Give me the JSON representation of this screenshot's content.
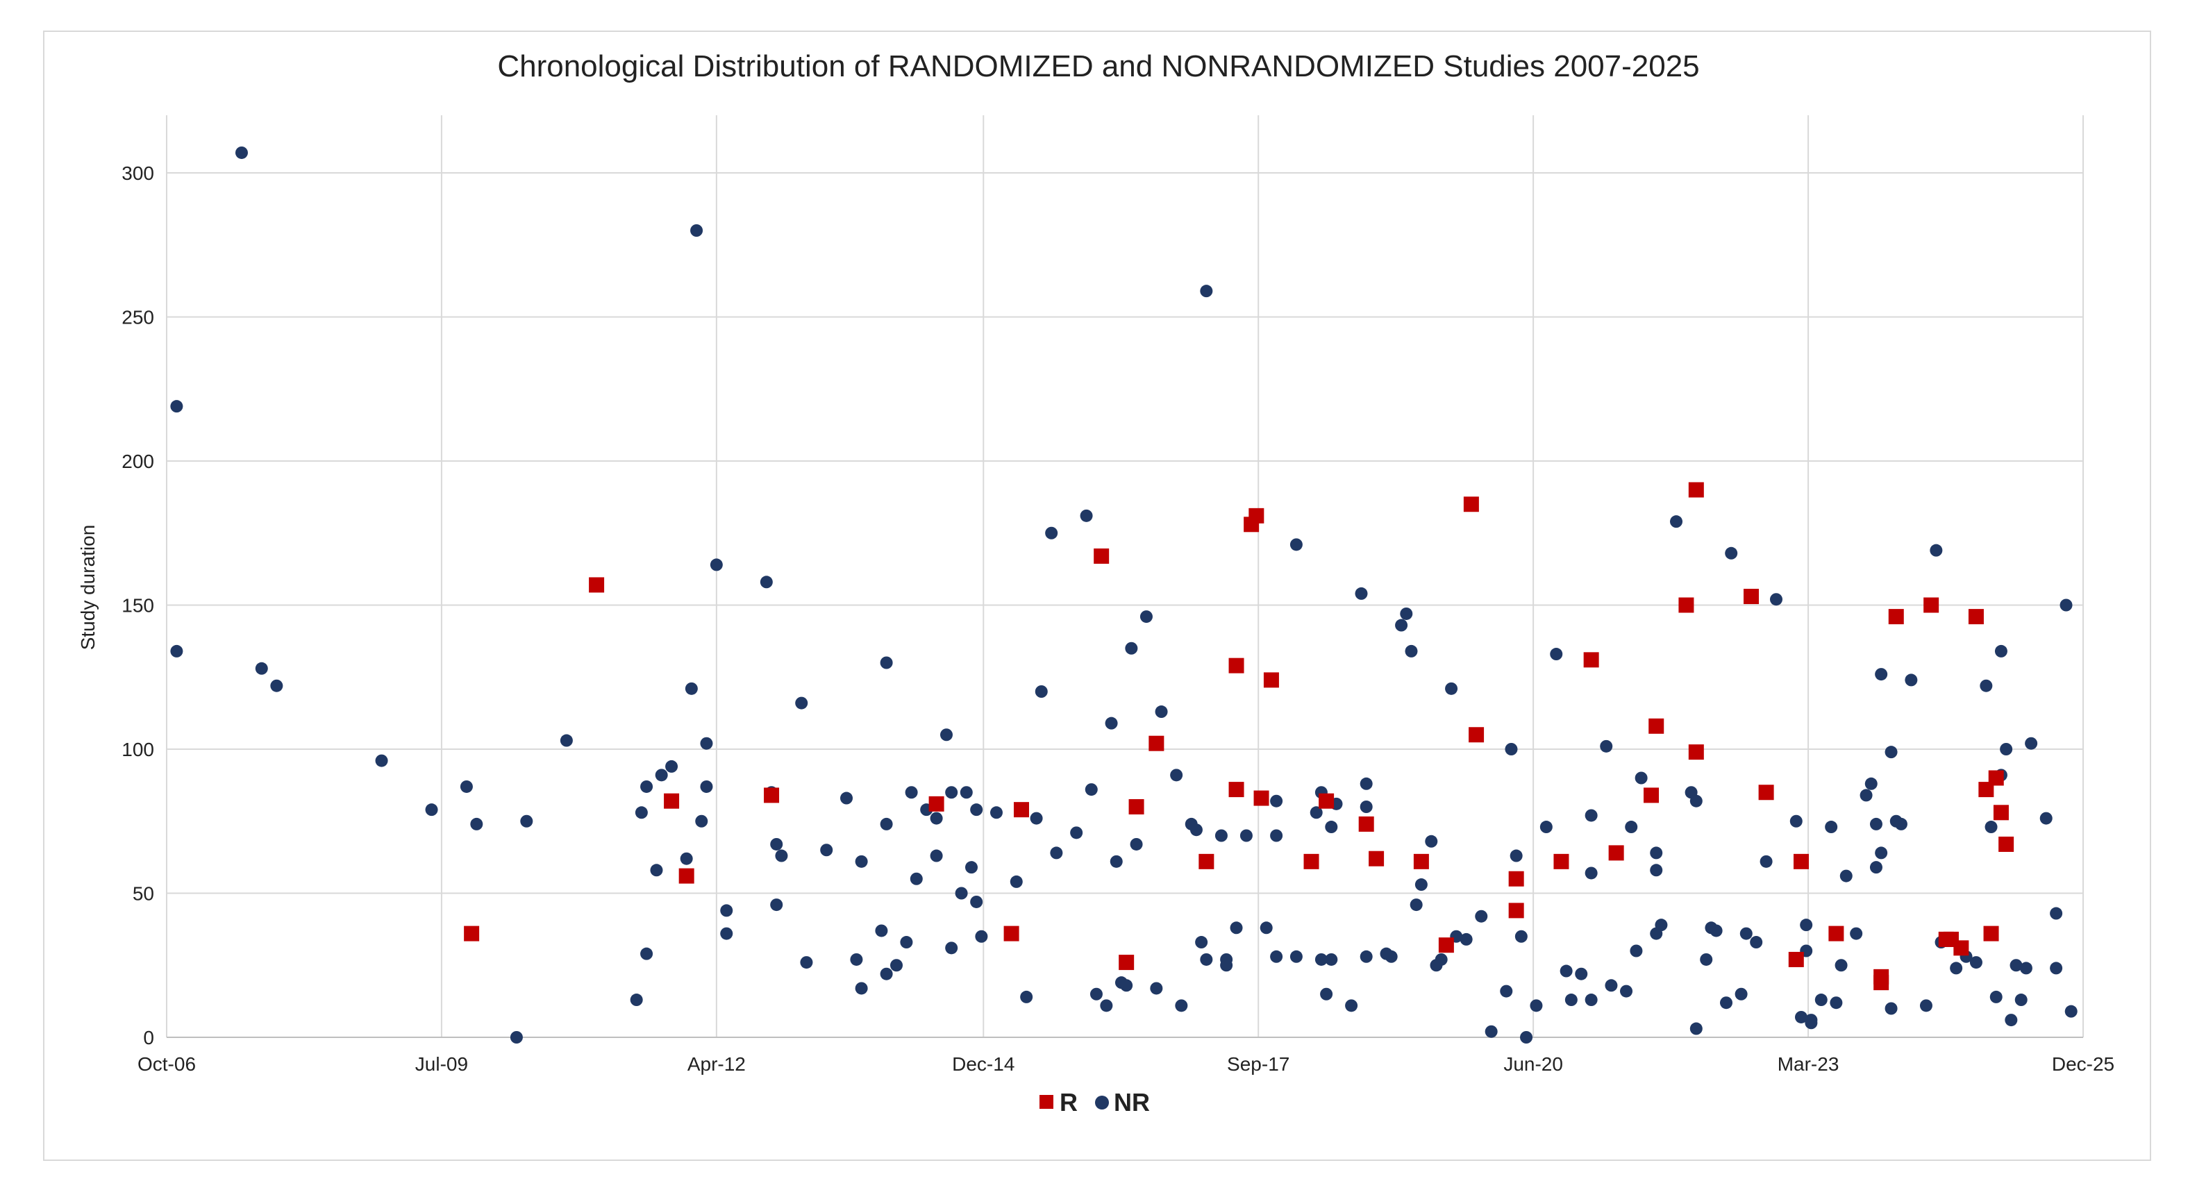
{
  "chart_data": {
    "type": "scatter",
    "title": "Chronological Distribution of RANDOMIZED and NONRANDOMIZED Studies 2007-2025",
    "xlabel": "",
    "ylabel": "Study duration",
    "xlim": [
      2006.75,
      2025.92
    ],
    "ylim": [
      0,
      320
    ],
    "x_ticks": [
      {
        "value": 2006.75,
        "label": "Oct-06"
      },
      {
        "value": 2009.5,
        "label": "Jul-09"
      },
      {
        "value": 2012.25,
        "label": "Apr-12"
      },
      {
        "value": 2014.92,
        "label": "Dec-14"
      },
      {
        "value": 2017.67,
        "label": "Sep-17"
      },
      {
        "value": 2020.42,
        "label": "Jun-20"
      },
      {
        "value": 2023.17,
        "label": "Mar-23"
      },
      {
        "value": 2025.92,
        "label": "Dec-25"
      }
    ],
    "y_ticks": [
      0,
      50,
      100,
      150,
      200,
      250,
      300
    ],
    "grid": true,
    "legend_position": "bottom-center",
    "series": [
      {
        "name": "R",
        "marker": "square",
        "color": "#c00000",
        "points": [
          [
            9.8,
            36
          ],
          [
            11.05,
            157
          ],
          [
            11.8,
            82
          ],
          [
            11.95,
            56
          ],
          [
            12.8,
            84
          ],
          [
            14.45,
            81
          ],
          [
            15.2,
            36
          ],
          [
            15.3,
            79
          ],
          [
            16.1,
            167
          ],
          [
            16.35,
            26
          ],
          [
            16.45,
            80
          ],
          [
            16.65,
            102
          ],
          [
            17.15,
            61
          ],
          [
            17.45,
            129
          ],
          [
            17.6,
            178
          ],
          [
            17.65,
            181
          ],
          [
            17.7,
            83
          ],
          [
            17.8,
            124
          ],
          [
            17.45,
            86
          ],
          [
            18.2,
            61
          ],
          [
            18.35,
            82
          ],
          [
            18.75,
            74
          ],
          [
            18.85,
            62
          ],
          [
            19.3,
            61
          ],
          [
            19.55,
            32
          ],
          [
            19.8,
            185
          ],
          [
            19.85,
            105
          ],
          [
            20.25,
            55
          ],
          [
            20.25,
            44
          ],
          [
            20.7,
            61
          ],
          [
            21.0,
            131
          ],
          [
            21.25,
            64
          ],
          [
            21.6,
            84
          ],
          [
            21.65,
            108
          ],
          [
            21.95,
            150
          ],
          [
            22.05,
            190
          ],
          [
            22.05,
            99
          ],
          [
            22.6,
            153
          ],
          [
            22.75,
            85
          ],
          [
            23.05,
            27
          ],
          [
            23.1,
            61
          ],
          [
            23.45,
            36
          ],
          [
            23.9,
            19
          ],
          [
            23.9,
            21
          ],
          [
            24.05,
            146
          ],
          [
            24.4,
            150
          ],
          [
            24.55,
            34
          ],
          [
            24.6,
            34
          ],
          [
            24.7,
            31
          ],
          [
            24.85,
            146
          ],
          [
            24.95,
            86
          ],
          [
            25.0,
            36
          ],
          [
            25.05,
            90
          ],
          [
            25.1,
            78
          ],
          [
            25.15,
            67
          ]
        ]
      },
      {
        "name": "NR",
        "marker": "circle",
        "color": "#203864",
        "points": [
          [
            6.85,
            219
          ],
          [
            6.85,
            134
          ],
          [
            7.5,
            307
          ],
          [
            7.7,
            128
          ],
          [
            7.85,
            122
          ],
          [
            8.9,
            96
          ],
          [
            9.4,
            79
          ],
          [
            9.75,
            87
          ],
          [
            9.85,
            74
          ],
          [
            10.25,
            0
          ],
          [
            10.35,
            75
          ],
          [
            10.75,
            103
          ],
          [
            11.45,
            13
          ],
          [
            11.5,
            78
          ],
          [
            11.55,
            87
          ],
          [
            11.55,
            29
          ],
          [
            11.65,
            58
          ],
          [
            11.7,
            91
          ],
          [
            11.8,
            94
          ],
          [
            11.95,
            62
          ],
          [
            12.0,
            121
          ],
          [
            12.05,
            280
          ],
          [
            12.1,
            75
          ],
          [
            12.15,
            102
          ],
          [
            12.15,
            87
          ],
          [
            12.25,
            164
          ],
          [
            12.35,
            36
          ],
          [
            12.35,
            44
          ],
          [
            12.75,
            158
          ],
          [
            12.8,
            85
          ],
          [
            12.85,
            46
          ],
          [
            12.85,
            67
          ],
          [
            12.9,
            63
          ],
          [
            13.1,
            116
          ],
          [
            13.15,
            26
          ],
          [
            13.35,
            65
          ],
          [
            13.55,
            83
          ],
          [
            13.65,
            27
          ],
          [
            13.7,
            17
          ],
          [
            13.7,
            61
          ],
          [
            13.9,
            37
          ],
          [
            13.95,
            22
          ],
          [
            13.95,
            130
          ],
          [
            13.95,
            74
          ],
          [
            14.05,
            25
          ],
          [
            14.15,
            33
          ],
          [
            14.2,
            85
          ],
          [
            14.25,
            55
          ],
          [
            14.35,
            79
          ],
          [
            14.45,
            76
          ],
          [
            14.45,
            63
          ],
          [
            14.55,
            105
          ],
          [
            14.6,
            31
          ],
          [
            14.6,
            85
          ],
          [
            14.7,
            50
          ],
          [
            14.75,
            85
          ],
          [
            14.8,
            59
          ],
          [
            14.85,
            47
          ],
          [
            14.85,
            79
          ],
          [
            14.9,
            35
          ],
          [
            15.05,
            78
          ],
          [
            15.25,
            54
          ],
          [
            15.35,
            14
          ],
          [
            15.45,
            76
          ],
          [
            15.5,
            120
          ],
          [
            15.6,
            175
          ],
          [
            15.65,
            64
          ],
          [
            15.85,
            71
          ],
          [
            15.95,
            181
          ],
          [
            16.0,
            86
          ],
          [
            16.05,
            15
          ],
          [
            16.15,
            11
          ],
          [
            16.2,
            109
          ],
          [
            16.25,
            61
          ],
          [
            16.3,
            19
          ],
          [
            16.35,
            18
          ],
          [
            16.4,
            135
          ],
          [
            16.45,
            67
          ],
          [
            16.55,
            146
          ],
          [
            16.65,
            17
          ],
          [
            16.7,
            113
          ],
          [
            16.85,
            91
          ],
          [
            16.9,
            11
          ],
          [
            17.0,
            74
          ],
          [
            17.05,
            72
          ],
          [
            17.1,
            33
          ],
          [
            17.15,
            27
          ],
          [
            17.15,
            259
          ],
          [
            17.3,
            70
          ],
          [
            17.35,
            25
          ],
          [
            17.35,
            27
          ],
          [
            17.45,
            38
          ],
          [
            17.55,
            70
          ],
          [
            17.75,
            38
          ],
          [
            17.85,
            82
          ],
          [
            17.85,
            28
          ],
          [
            17.85,
            70
          ],
          [
            18.05,
            171
          ],
          [
            18.05,
            28
          ],
          [
            18.25,
            78
          ],
          [
            18.3,
            85
          ],
          [
            18.3,
            27
          ],
          [
            18.35,
            15
          ],
          [
            18.4,
            27
          ],
          [
            18.4,
            73
          ],
          [
            18.45,
            81
          ],
          [
            18.6,
            11
          ],
          [
            18.7,
            154
          ],
          [
            18.75,
            80
          ],
          [
            18.75,
            88
          ],
          [
            18.75,
            28
          ],
          [
            18.95,
            29
          ],
          [
            19.0,
            28
          ],
          [
            19.1,
            143
          ],
          [
            19.15,
            147
          ],
          [
            19.2,
            134
          ],
          [
            19.25,
            46
          ],
          [
            19.3,
            53
          ],
          [
            19.4,
            68
          ],
          [
            19.45,
            25
          ],
          [
            19.5,
            27
          ],
          [
            19.6,
            121
          ],
          [
            19.65,
            35
          ],
          [
            19.75,
            34
          ],
          [
            19.9,
            42
          ],
          [
            20.0,
            2
          ],
          [
            20.15,
            16
          ],
          [
            20.2,
            100
          ],
          [
            20.25,
            63
          ],
          [
            20.3,
            35
          ],
          [
            20.35,
            0
          ],
          [
            20.45,
            11
          ],
          [
            20.55,
            73
          ],
          [
            20.65,
            133
          ],
          [
            20.75,
            23
          ],
          [
            20.8,
            13
          ],
          [
            20.9,
            22
          ],
          [
            21.0,
            57
          ],
          [
            21.0,
            13
          ],
          [
            21.0,
            77
          ],
          [
            21.15,
            101
          ],
          [
            21.2,
            18
          ],
          [
            21.35,
            16
          ],
          [
            21.4,
            73
          ],
          [
            21.45,
            30
          ],
          [
            21.5,
            90
          ],
          [
            21.65,
            58
          ],
          [
            21.65,
            64
          ],
          [
            21.65,
            36
          ],
          [
            21.7,
            39
          ],
          [
            21.85,
            179
          ],
          [
            22.0,
            85
          ],
          [
            22.05,
            82
          ],
          [
            22.05,
            3
          ],
          [
            22.15,
            27
          ],
          [
            22.2,
            38
          ],
          [
            22.25,
            37
          ],
          [
            22.35,
            12
          ],
          [
            22.4,
            168
          ],
          [
            22.5,
            15
          ],
          [
            22.55,
            36
          ],
          [
            22.65,
            33
          ],
          [
            22.75,
            61
          ],
          [
            22.85,
            152
          ],
          [
            23.05,
            75
          ],
          [
            23.1,
            7
          ],
          [
            23.15,
            39
          ],
          [
            23.15,
            30
          ],
          [
            23.2,
            5
          ],
          [
            23.2,
            6
          ],
          [
            23.3,
            13
          ],
          [
            23.4,
            73
          ],
          [
            23.45,
            12
          ],
          [
            23.5,
            25
          ],
          [
            23.55,
            56
          ],
          [
            23.65,
            36
          ],
          [
            23.75,
            84
          ],
          [
            23.8,
            88
          ],
          [
            23.85,
            74
          ],
          [
            23.85,
            59
          ],
          [
            23.9,
            64
          ],
          [
            23.9,
            126
          ],
          [
            24.0,
            10
          ],
          [
            24.0,
            99
          ],
          [
            24.05,
            75
          ],
          [
            24.1,
            74
          ],
          [
            24.2,
            124
          ],
          [
            24.35,
            11
          ],
          [
            24.45,
            169
          ],
          [
            24.5,
            33
          ],
          [
            24.65,
            24
          ],
          [
            24.75,
            28
          ],
          [
            24.85,
            26
          ],
          [
            24.95,
            122
          ],
          [
            25.0,
            73
          ],
          [
            25.05,
            14
          ],
          [
            25.1,
            91
          ],
          [
            25.1,
            134
          ],
          [
            25.15,
            100
          ],
          [
            25.2,
            6
          ],
          [
            25.25,
            25
          ],
          [
            25.3,
            13
          ],
          [
            25.35,
            24
          ],
          [
            25.4,
            102
          ],
          [
            25.55,
            76
          ],
          [
            25.65,
            43
          ],
          [
            25.65,
            24
          ],
          [
            25.75,
            150
          ],
          [
            25.8,
            9
          ]
        ]
      }
    ]
  }
}
